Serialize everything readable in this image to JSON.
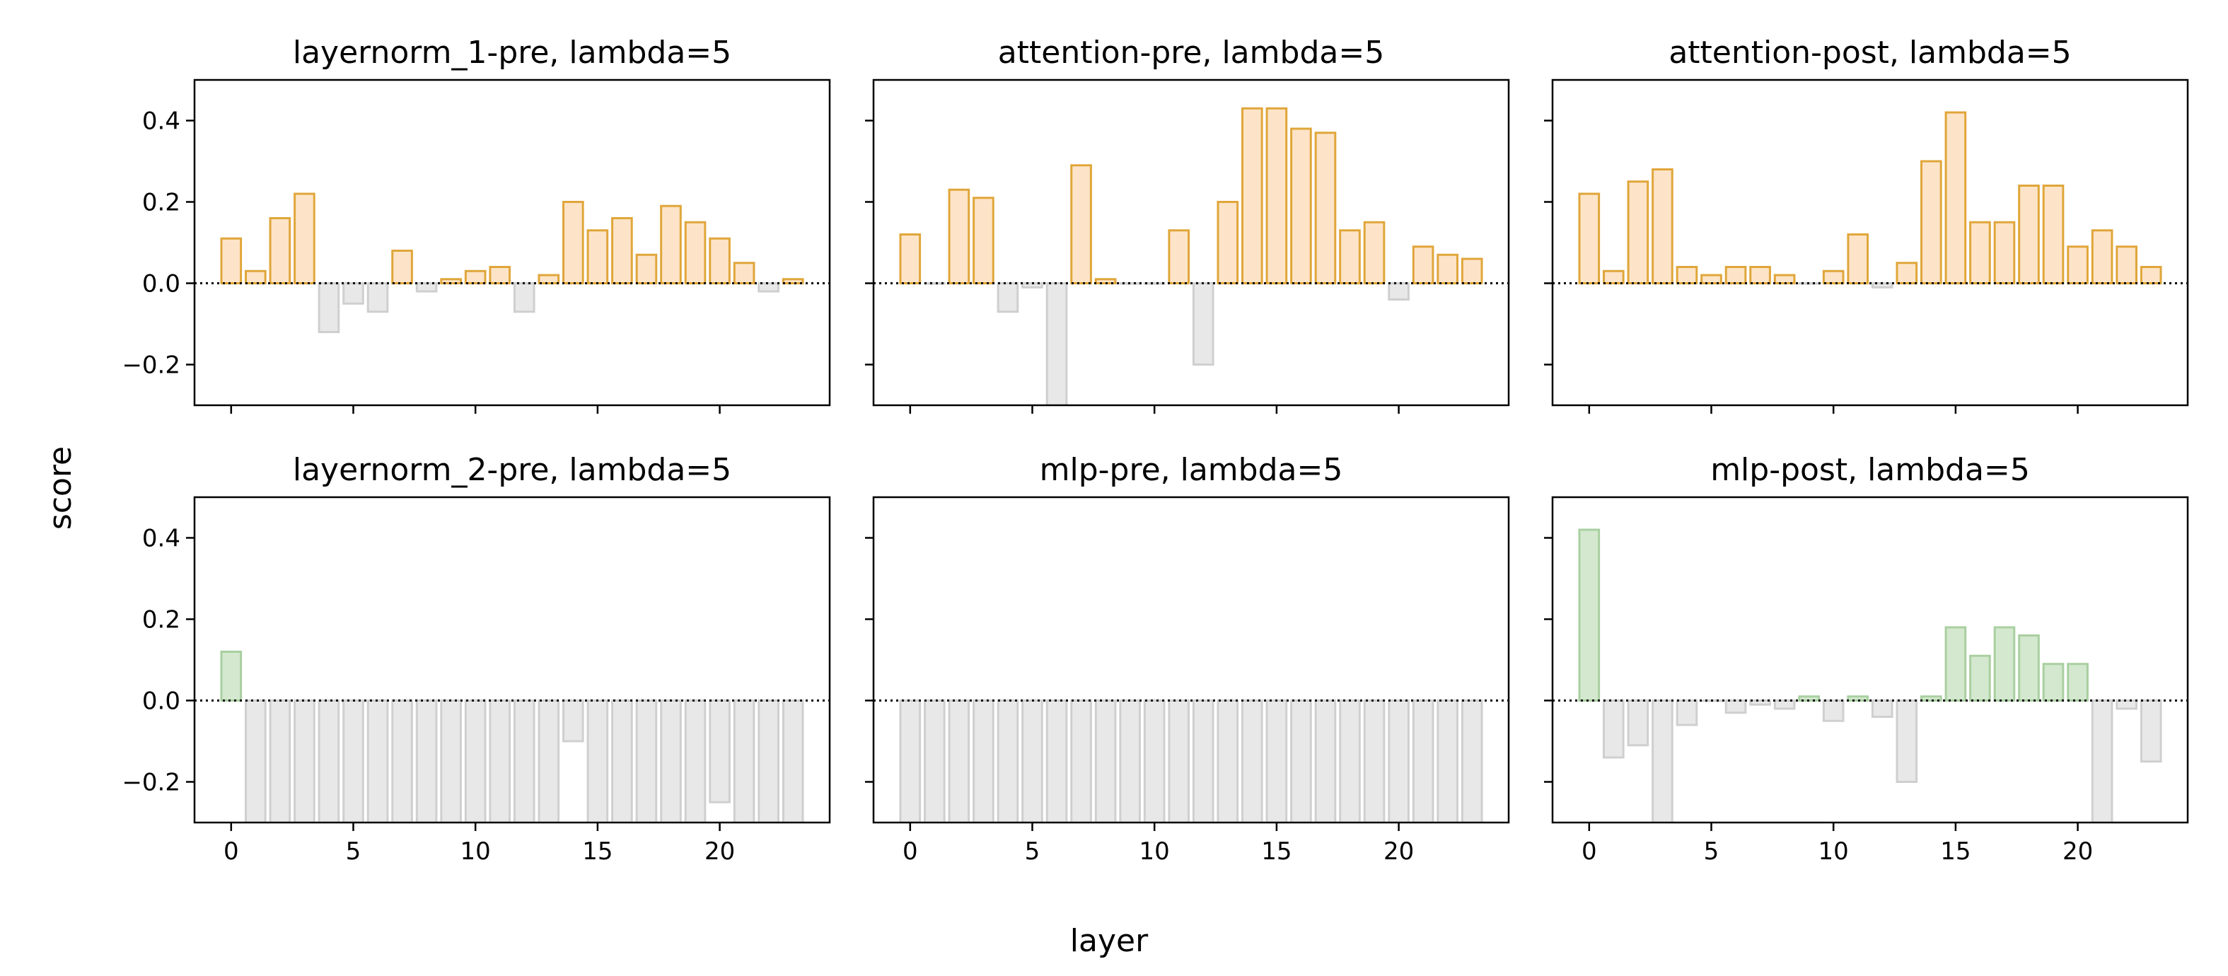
{
  "figure": {
    "xlabel": "layer",
    "ylabel": "score"
  },
  "colors": {
    "orange_fill": "#fde4c8",
    "orange_edge": "#e0a63a",
    "green_fill": "#d3e8cf",
    "green_edge": "#a9cfa0",
    "gray_fill": "#e8e8e8",
    "gray_edge": "#cfcfcf",
    "zero_line": "#000000"
  },
  "chart_data": [
    {
      "type": "bar",
      "title": "layernorm_1-pre, lambda=5",
      "x": [
        0,
        1,
        2,
        3,
        4,
        5,
        6,
        7,
        8,
        9,
        10,
        11,
        12,
        13,
        14,
        15,
        16,
        17,
        18,
        19,
        20,
        21,
        22,
        23
      ],
      "values": [
        0.11,
        0.03,
        0.16,
        0.22,
        -0.12,
        -0.05,
        -0.07,
        0.08,
        -0.02,
        0.01,
        0.03,
        0.04,
        -0.07,
        0.02,
        0.2,
        0.13,
        0.16,
        0.07,
        0.19,
        0.15,
        0.11,
        0.05,
        -0.02,
        0.01
      ],
      "positive_color": "orange",
      "xticks": [
        0,
        5,
        10,
        15,
        20
      ],
      "yticks": [
        -0.2,
        0.0,
        0.2,
        0.4
      ],
      "ylim": [
        -0.3,
        0.5
      ],
      "show_xticklabels": false,
      "show_yticklabels": true
    },
    {
      "type": "bar",
      "title": "attention-pre, lambda=5",
      "x": [
        0,
        1,
        2,
        3,
        4,
        5,
        6,
        7,
        8,
        9,
        10,
        11,
        12,
        13,
        14,
        15,
        16,
        17,
        18,
        19,
        20,
        21,
        22,
        23
      ],
      "values": [
        0.12,
        0.0,
        0.23,
        0.21,
        -0.07,
        -0.01,
        -0.32,
        0.29,
        0.01,
        0.0,
        0.0,
        0.13,
        -0.2,
        0.2,
        0.43,
        0.43,
        0.38,
        0.37,
        0.13,
        0.15,
        -0.04,
        0.09,
        0.07,
        0.06
      ],
      "positive_color": "orange",
      "xticks": [
        0,
        5,
        10,
        15,
        20
      ],
      "yticks": [
        -0.2,
        0.0,
        0.2,
        0.4
      ],
      "ylim": [
        -0.3,
        0.5
      ],
      "show_xticklabels": false,
      "show_yticklabels": false
    },
    {
      "type": "bar",
      "title": "attention-post, lambda=5",
      "x": [
        0,
        1,
        2,
        3,
        4,
        5,
        6,
        7,
        8,
        9,
        10,
        11,
        12,
        13,
        14,
        15,
        16,
        17,
        18,
        19,
        20,
        21,
        22,
        23
      ],
      "values": [
        0.22,
        0.03,
        0.25,
        0.28,
        0.04,
        0.02,
        0.04,
        0.04,
        0.02,
        0.0,
        0.03,
        0.12,
        -0.01,
        0.05,
        0.3,
        0.42,
        0.15,
        0.15,
        0.24,
        0.24,
        0.09,
        0.13,
        0.09,
        0.04
      ],
      "positive_color": "orange",
      "xticks": [
        0,
        5,
        10,
        15,
        20
      ],
      "yticks": [
        -0.2,
        0.0,
        0.2,
        0.4
      ],
      "ylim": [
        -0.3,
        0.5
      ],
      "show_xticklabels": false,
      "show_yticklabels": false
    },
    {
      "type": "bar",
      "title": "layernorm_2-pre, lambda=5",
      "x": [
        0,
        1,
        2,
        3,
        4,
        5,
        6,
        7,
        8,
        9,
        10,
        11,
        12,
        13,
        14,
        15,
        16,
        17,
        18,
        19,
        20,
        21,
        22,
        23
      ],
      "values": [
        0.12,
        -0.35,
        -0.35,
        -0.35,
        -0.35,
        -0.35,
        -0.35,
        -0.35,
        -0.35,
        -0.35,
        -0.35,
        -0.35,
        -0.35,
        -0.35,
        -0.1,
        -0.35,
        -0.35,
        -0.35,
        -0.35,
        -0.35,
        -0.25,
        -0.35,
        -0.35,
        -0.35
      ],
      "positive_color": "green",
      "xticks": [
        0,
        5,
        10,
        15,
        20
      ],
      "yticks": [
        -0.2,
        0.0,
        0.2,
        0.4
      ],
      "ylim": [
        -0.3,
        0.5
      ],
      "show_xticklabels": true,
      "show_yticklabels": true
    },
    {
      "type": "bar",
      "title": "mlp-pre, lambda=5",
      "x": [
        0,
        1,
        2,
        3,
        4,
        5,
        6,
        7,
        8,
        9,
        10,
        11,
        12,
        13,
        14,
        15,
        16,
        17,
        18,
        19,
        20,
        21,
        22,
        23
      ],
      "values": [
        -0.35,
        -0.35,
        -0.35,
        -0.35,
        -0.35,
        -0.35,
        -0.35,
        -0.35,
        -0.35,
        -0.35,
        -0.35,
        -0.35,
        -0.35,
        -0.35,
        -0.35,
        -0.35,
        -0.35,
        -0.35,
        -0.35,
        -0.35,
        -0.35,
        -0.35,
        -0.35,
        -0.35
      ],
      "positive_color": "green",
      "xticks": [
        0,
        5,
        10,
        15,
        20
      ],
      "yticks": [
        -0.2,
        0.0,
        0.2,
        0.4
      ],
      "ylim": [
        -0.3,
        0.5
      ],
      "show_xticklabels": true,
      "show_yticklabels": false
    },
    {
      "type": "bar",
      "title": "mlp-post, lambda=5",
      "x": [
        0,
        1,
        2,
        3,
        4,
        5,
        6,
        7,
        8,
        9,
        10,
        11,
        12,
        13,
        14,
        15,
        16,
        17,
        18,
        19,
        20,
        21,
        22,
        23
      ],
      "values": [
        0.42,
        -0.14,
        -0.11,
        -0.35,
        -0.06,
        0.0,
        -0.03,
        -0.01,
        -0.02,
        0.01,
        -0.05,
        0.01,
        -0.04,
        -0.2,
        0.01,
        0.18,
        0.11,
        0.18,
        0.16,
        0.09,
        0.09,
        -0.35,
        -0.02,
        -0.15
      ],
      "positive_color": "green",
      "xticks": [
        0,
        5,
        10,
        15,
        20
      ],
      "yticks": [
        -0.2,
        0.0,
        0.2,
        0.4
      ],
      "ylim": [
        -0.3,
        0.5
      ],
      "show_xticklabels": true,
      "show_yticklabels": false
    }
  ]
}
